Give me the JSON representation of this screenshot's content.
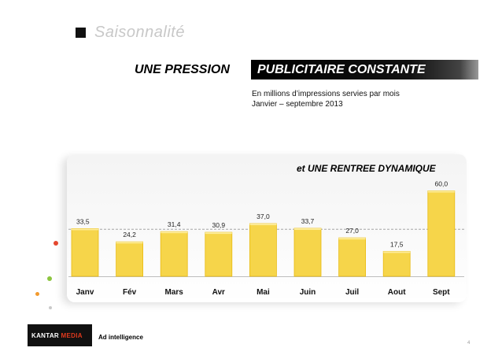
{
  "slide": {
    "title": "Saisonnalité",
    "banner_left": "UNE PRESSION",
    "banner_right": "PUBLICITAIRE CONSTANTE",
    "subtitle_line1": "En millions d’impressions servies par mois",
    "subtitle_line2": "Janvier – septembre 2013",
    "page_number": "4"
  },
  "brand": {
    "logo_part1": "KANTAR",
    "logo_part2": "MEDIA",
    "tagline": "Ad intelligence"
  },
  "colors": {
    "bar_fill": "#f6d54a",
    "bar_edge": "#e9bb12",
    "average_line": "#a6a6a6",
    "logo_accent": "#e03a1e"
  },
  "chart_data": {
    "type": "bar",
    "title": "",
    "annotation": "et UNE RENTREE DYNAMIQUE",
    "categories": [
      "Janv",
      "Fév",
      "Mars",
      "Avr",
      "Mai",
      "Juin",
      "Juil",
      "Aout",
      "Sept"
    ],
    "values": [
      33.5,
      24.2,
      31.4,
      30.9,
      37.0,
      33.7,
      27.0,
      17.5,
      60.0
    ],
    "value_labels": [
      "33,5",
      "24,2",
      "31,4",
      "30,9",
      "37,0",
      "33,7",
      "27,0",
      "17,5",
      "60,0"
    ],
    "reference_line": {
      "value": 33.0,
      "style": "dashed"
    },
    "xlabel": "",
    "ylabel": "",
    "ylim": [
      0,
      68
    ],
    "grid": false,
    "legend": "none"
  }
}
